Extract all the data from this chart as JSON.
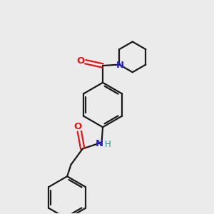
{
  "background_color": "#ebebeb",
  "bond_color": "#1a1a1a",
  "atom_colors": {
    "O": "#ee1111",
    "N": "#2222cc",
    "H": "#338888",
    "C": "#1a1a1a"
  },
  "figsize": [
    3.0,
    3.0
  ],
  "dpi": 100
}
